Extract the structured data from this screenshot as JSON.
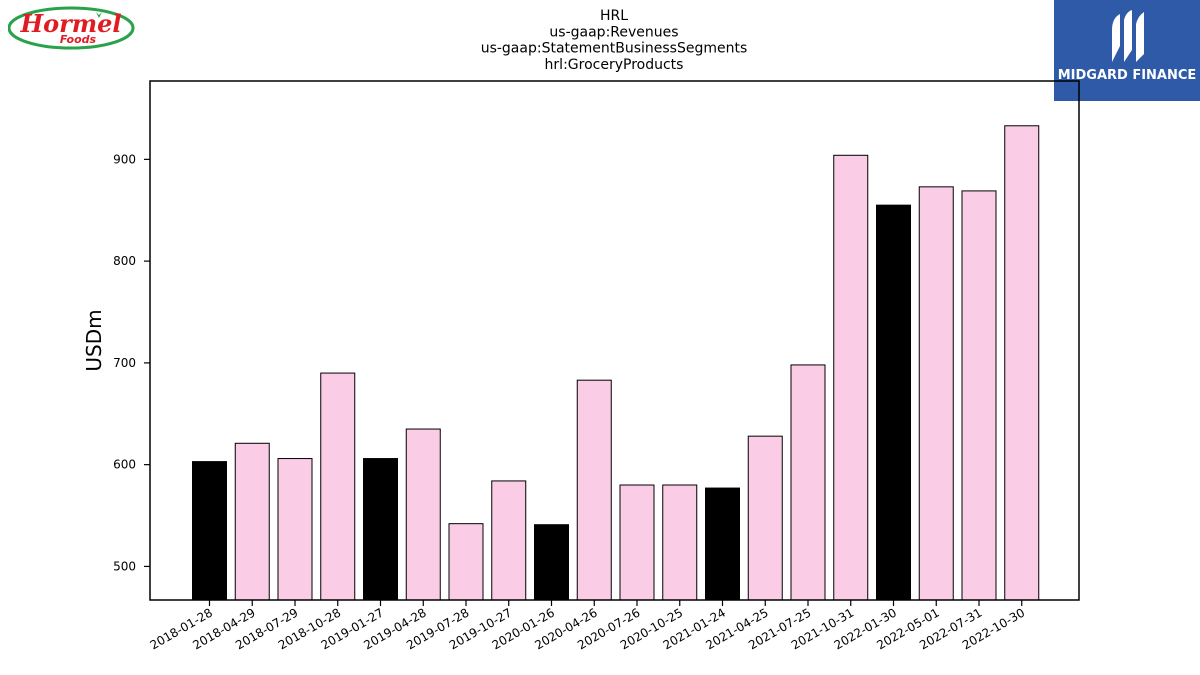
{
  "logos": {
    "left_text": "Hormel",
    "left_subtext": "Foods",
    "right_text": "MIDGARD FINANCE"
  },
  "colors": {
    "highlight_bar": "#000000",
    "normal_bar": "#fbcce6",
    "bar_edge": "#000000",
    "left_logo_red": "#e11b22",
    "left_logo_green": "#2aa24a",
    "right_logo_bg": "#2f5aa8"
  },
  "chart_data": {
    "type": "bar",
    "title_lines": [
      "HRL",
      "us-gaap:Revenues",
      "us-gaap:StatementBusinessSegments",
      "hrl:GroceryProducts"
    ],
    "xlabel": "",
    "ylabel": "USDm",
    "ylim": [
      467,
      977
    ],
    "yticks": [
      500,
      600,
      700,
      800,
      900
    ],
    "categories": [
      "2018-01-28",
      "2018-04-29",
      "2018-07-29",
      "2018-10-28",
      "2019-01-27",
      "2019-04-28",
      "2019-07-28",
      "2019-10-27",
      "2020-01-26",
      "2020-04-26",
      "2020-07-26",
      "2020-10-25",
      "2021-01-24",
      "2021-04-25",
      "2021-07-25",
      "2021-10-31",
      "2022-01-30",
      "2022-05-01",
      "2022-07-31",
      "2022-10-30"
    ],
    "values": [
      603,
      621,
      606,
      690,
      606,
      635,
      542,
      584,
      541,
      683,
      580,
      580,
      577,
      628,
      698,
      904,
      855,
      873,
      869,
      933
    ],
    "highlight": [
      true,
      false,
      false,
      false,
      true,
      false,
      false,
      false,
      true,
      false,
      false,
      false,
      true,
      false,
      false,
      false,
      true,
      false,
      false,
      false
    ]
  }
}
